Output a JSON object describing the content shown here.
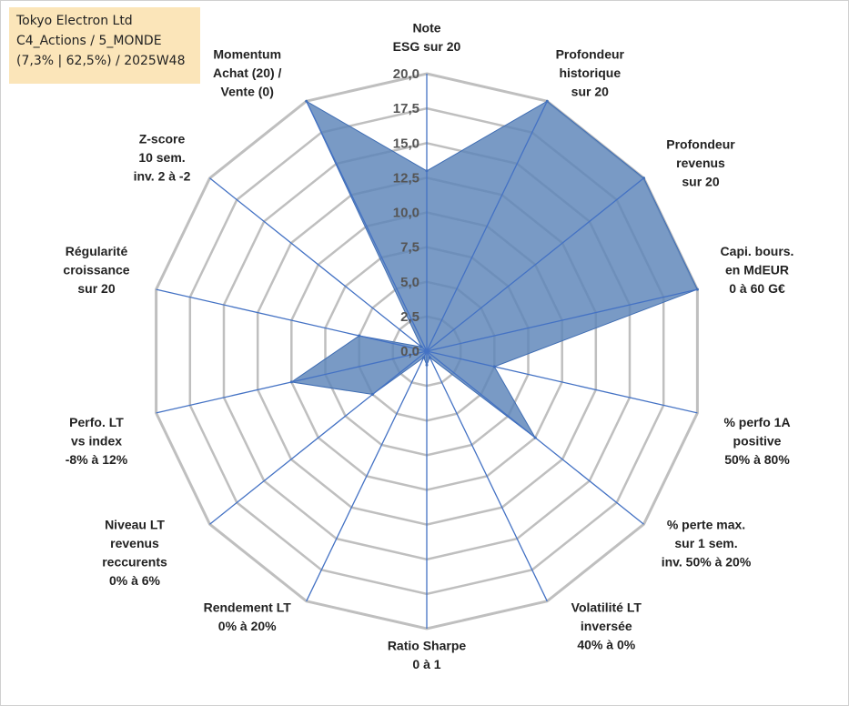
{
  "info": {
    "company": "Tokyo Electron Ltd",
    "category": "C4_Actions / 5_MONDE",
    "stats": "(7,3% | 62,5%) / 2025W48"
  },
  "colors": {
    "fill": "#5b84b8",
    "stroke": "#3f6db3",
    "grid": "#bfbfbf",
    "spoke": "#4472c4"
  },
  "chart_data": {
    "type": "radar",
    "rmax": 20,
    "ticks": [
      "0,0",
      "2,5",
      "5,0",
      "7,5",
      "10,0",
      "12,5",
      "15,0",
      "17,5",
      "20,0"
    ],
    "series": [
      {
        "name": "Tokyo Electron Ltd",
        "values": [
          13,
          20,
          20,
          20,
          5,
          10,
          0.5,
          1,
          0.5,
          5,
          10,
          5,
          0.5,
          20
        ]
      }
    ],
    "axes": [
      {
        "lines": [
          "Note",
          "ESG sur 20"
        ]
      },
      {
        "lines": [
          "Profondeur",
          "historique",
          "sur 20"
        ]
      },
      {
        "lines": [
          "Profondeur",
          "revenus",
          "sur 20"
        ]
      },
      {
        "lines": [
          "Capi. bours.",
          "en MdEUR",
          "0 à 60 G€"
        ]
      },
      {
        "lines": [
          "% perfo 1A",
          "positive",
          "50% à 80%"
        ]
      },
      {
        "lines": [
          "% perte max.",
          "sur 1 sem.",
          "inv. 50% à 20%"
        ]
      },
      {
        "lines": [
          "Volatilité LT",
          "inversée",
          "40% à 0%"
        ]
      },
      {
        "lines": [
          "Ratio Sharpe",
          "0 à 1"
        ]
      },
      {
        "lines": [
          "Rendement LT",
          "0% à 20%"
        ]
      },
      {
        "lines": [
          "Niveau LT",
          "revenus",
          "reccurents",
          "0% à 6%"
        ]
      },
      {
        "lines": [
          "Perfo. LT",
          "vs index",
          "-8% à 12%"
        ]
      },
      {
        "lines": [
          "Régularité",
          "croissance",
          "sur 20"
        ]
      },
      {
        "lines": [
          "Z-score",
          "10 sem.",
          "inv. 2 à -2"
        ]
      },
      {
        "lines": [
          "Momentum",
          "Achat (20) /",
          "Vente (0)"
        ]
      }
    ]
  }
}
